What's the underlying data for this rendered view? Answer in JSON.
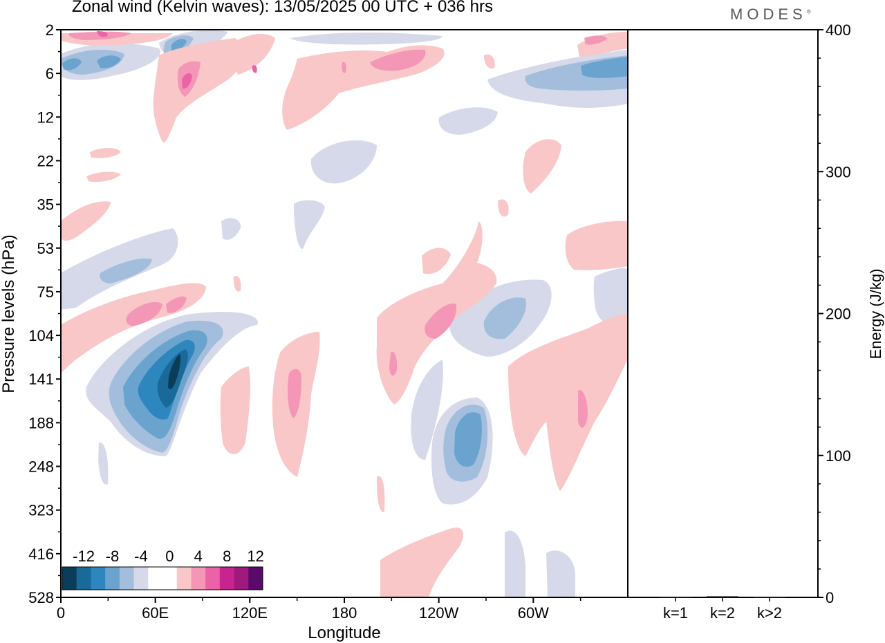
{
  "header": {
    "title": "Zonal wind (Kelvin waves):  13/05/2025  00 UTC  + 036 hrs",
    "brand": "MODES",
    "brand_mark": "®"
  },
  "chart_data": [
    {
      "type": "heatmap",
      "title": "Zonal wind (Kelvin waves):  13/05/2025  00 UTC  + 036 hrs",
      "xlabel": "Longitude",
      "ylabel": "Pressure levels (hPa)",
      "x_ticks": [
        "0",
        "60E",
        "120E",
        "180",
        "120W",
        "60W"
      ],
      "x_tick_positions_deg": [
        0,
        60,
        120,
        180,
        240,
        300
      ],
      "xlim": [
        0,
        360
      ],
      "y_ticks": [
        "2",
        "6",
        "12",
        "22",
        "35",
        "53",
        "75",
        "104",
        "141",
        "188",
        "248",
        "323",
        "416",
        "528"
      ],
      "y_scale": "model levels (top = 2 hPa, bottom = 528 hPa)",
      "colorbar": {
        "labels": [
          "-12",
          "-8",
          "-4",
          "0",
          "4",
          "8",
          "12"
        ],
        "colors": [
          "#0b3d5a",
          "#1a6a99",
          "#2d86be",
          "#6aa3cd",
          "#a3bedc",
          "#d6d9ea",
          "#ffffff",
          "#ffffff",
          "#f9c7c7",
          "#f497b7",
          "#eb62a6",
          "#c8248f",
          "#a0197d",
          "#5a0a6a"
        ]
      },
      "features": [
        {
          "sign": "negative",
          "peak": "-12",
          "lon": 70,
          "level": "141",
          "desc": "strong easterly core"
        },
        {
          "sign": "negative",
          "peak": "-8",
          "lon": 258,
          "level": "188"
        },
        {
          "sign": "negative",
          "peak": "-4",
          "lon": 285,
          "level": "104"
        },
        {
          "sign": "positive",
          "peak": "8",
          "lon": 245,
          "level": "104"
        },
        {
          "sign": "positive",
          "peak": "4",
          "lon": 148,
          "level": "141"
        },
        {
          "sign": "positive",
          "peak": "4",
          "lon": 325,
          "level": "188"
        }
      ]
    },
    {
      "type": "bar",
      "ylabel": "Energy (J/kg)",
      "categories": [
        "k=1",
        "k=2",
        "k>2"
      ],
      "values": [
        0.5,
        0.8,
        0.5
      ],
      "ylim": [
        0,
        400
      ],
      "y_ticks": [
        "0",
        "100",
        "200",
        "300",
        "400"
      ],
      "y_axis_side": "right"
    }
  ]
}
